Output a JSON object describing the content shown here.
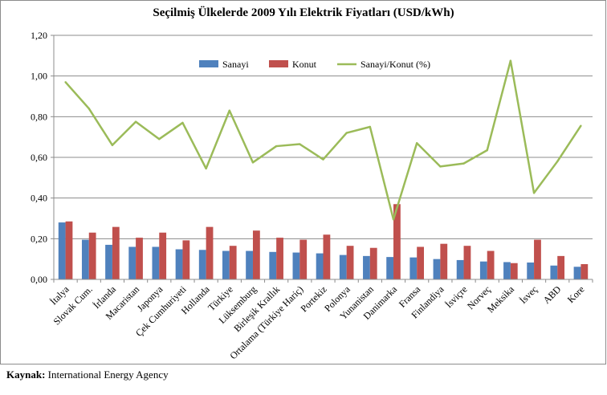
{
  "source": {
    "label": "Kaynak:",
    "text": "International Energy Agency"
  },
  "chart_data": {
    "type": "bar",
    "title": "Seçilmiş Ülkelerde 2009 Yılı Elektrik Fiyatları (USD/kWh)",
    "xlabel": "",
    "ylabel": "",
    "ylim": [
      0,
      1.2
    ],
    "yticks": [
      "0,00",
      "0,20",
      "0,40",
      "0,60",
      "0,80",
      "1,00",
      "1,20"
    ],
    "grid": "horizontal",
    "legend_position": "top",
    "categories": [
      "İtalya",
      "Slovak Cum.",
      "İrlanda",
      "Macaristan",
      "Japonya",
      "Çek Cumhuriyeti",
      "Hollanda",
      "Türkiye",
      "Lüksemburg",
      "Birleşik Krallık",
      "Ortalama (Türkiye Hariç)",
      "Portekiz",
      "Polonya",
      "Yunanistan",
      "Danimarka",
      "Fransa",
      "Finlandiya",
      "İsviçre",
      "Norveç",
      "Meksika",
      "İsveç",
      "ABD",
      "Kore"
    ],
    "series": [
      {
        "name": "Sanayi",
        "type": "bar",
        "color": "#4f81bd",
        "values": [
          0.28,
          0.195,
          0.17,
          0.16,
          0.16,
          0.148,
          0.145,
          0.14,
          0.14,
          0.135,
          0.132,
          0.128,
          0.12,
          0.115,
          0.11,
          0.108,
          0.1,
          0.095,
          0.088,
          0.085,
          0.083,
          0.068,
          0.062
        ]
      },
      {
        "name": "Konut",
        "type": "bar",
        "color": "#c0504d",
        "values": [
          0.285,
          0.23,
          0.258,
          0.205,
          0.23,
          0.192,
          0.258,
          0.165,
          0.24,
          0.205,
          0.195,
          0.22,
          0.165,
          0.155,
          0.37,
          0.16,
          0.175,
          0.165,
          0.14,
          0.08,
          0.195,
          0.115,
          0.075
        ]
      },
      {
        "name": "Sanayi/Konut (%)",
        "type": "line",
        "color": "#9bbb59",
        "values": [
          0.97,
          0.84,
          0.66,
          0.775,
          0.69,
          0.77,
          0.545,
          0.83,
          0.575,
          0.655,
          0.665,
          0.59,
          0.72,
          0.75,
          0.295,
          0.67,
          0.555,
          0.57,
          0.635,
          1.075,
          0.425,
          0.58,
          0.755
        ]
      }
    ]
  }
}
